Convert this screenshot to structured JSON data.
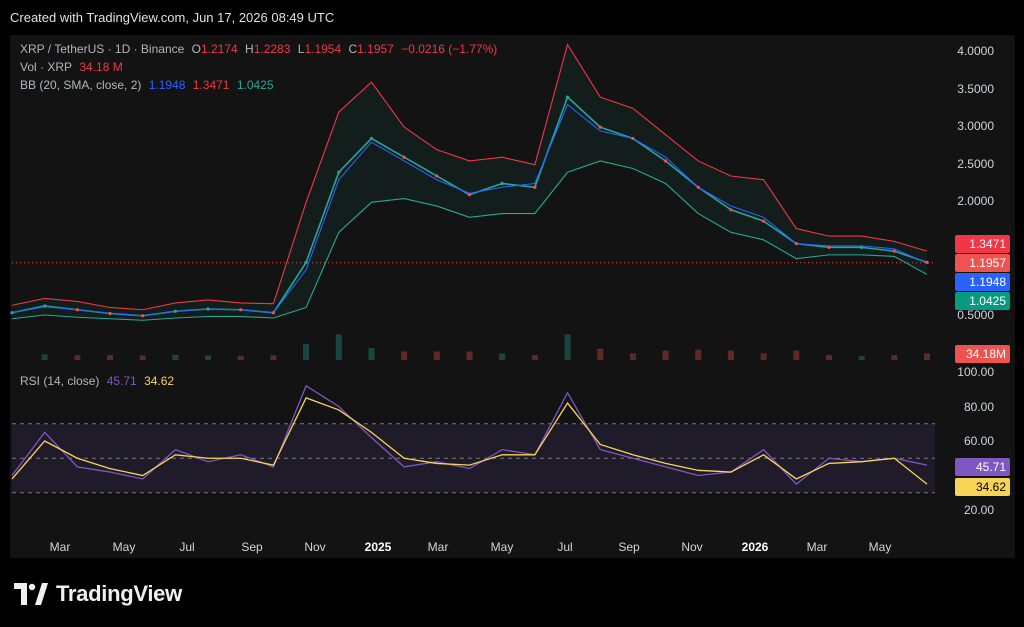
{
  "header": {
    "created": "Created with TradingView.com, Jun 17, 2026 08:49 UTC"
  },
  "legend": {
    "symbol": "XRP / TetherUS · 1D · Binance",
    "o_label": "O",
    "o": "1.2174",
    "h_label": "H",
    "h": "1.2283",
    "l_label": "L",
    "l": "1.1954",
    "c_label": "C",
    "c": "1.1957",
    "change": "−0.0216 (−1.77%)",
    "vol_label": "Vol · XRP",
    "vol": "34.18 M",
    "bb_label": "BB (20, SMA, close, 2)",
    "bb_basis": "1.1948",
    "bb_upper": "1.3471",
    "bb_lower": "1.0425",
    "rsi_label": "RSI (14, close)",
    "rsi": "45.71",
    "rsi_ma": "34.62"
  },
  "price_axis": [
    "4.0000",
    "3.5000",
    "3.0000",
    "2.5000",
    "2.0000",
    "0.5000"
  ],
  "price_pills": {
    "upper": "1.3471",
    "close": "1.1957",
    "basis": "1.1948",
    "lower": "1.0425",
    "volume": "34.18M"
  },
  "rsi_axis": [
    "100.00",
    "80.00",
    "60.00",
    "20.00"
  ],
  "rsi_pills": {
    "rsi": "45.71",
    "ma": "34.62"
  },
  "time_axis": [
    "Mar",
    "May",
    "Jul",
    "Sep",
    "Nov",
    "2025",
    "Mar",
    "May",
    "Jul",
    "Sep",
    "Nov",
    "2026",
    "Mar",
    "May"
  ],
  "brand": {
    "name": "TradingView"
  },
  "colors": {
    "bull": "#26a69a",
    "bear": "#ef5350",
    "upper": "#f23645",
    "basis": "#2962ff",
    "lower": "#22ab94",
    "rsi": "#7e57c2",
    "rsi_ma": "#f7d358"
  },
  "chart_data": [
    {
      "type": "line",
      "title": "XRP / TetherUS · 1D · Binance",
      "ylim": [
        0.3,
        4.3
      ],
      "x": [
        "2024-02",
        "2024-03",
        "2024-04",
        "2024-05",
        "2024-06",
        "2024-07",
        "2024-08",
        "2024-09",
        "2024-10",
        "2024-11",
        "2024-12",
        "2025-01",
        "2025-02",
        "2025-03",
        "2025-04",
        "2025-05",
        "2025-06",
        "2025-07",
        "2025-08",
        "2025-09",
        "2025-10",
        "2025-11",
        "2025-12",
        "2026-01",
        "2026-02",
        "2026-03",
        "2026-04",
        "2026-05",
        "2026-06"
      ],
      "series": [
        {
          "name": "close",
          "values": [
            0.53,
            0.62,
            0.57,
            0.52,
            0.49,
            0.55,
            0.58,
            0.57,
            0.53,
            1.2,
            2.4,
            2.85,
            2.6,
            2.35,
            2.1,
            2.25,
            2.2,
            3.4,
            3.0,
            2.85,
            2.55,
            2.2,
            1.9,
            1.75,
            1.45,
            1.4,
            1.4,
            1.35,
            1.2
          ]
        },
        {
          "name": "BB upper",
          "values": [
            0.63,
            0.72,
            0.68,
            0.6,
            0.57,
            0.66,
            0.7,
            0.66,
            0.65,
            2.0,
            3.2,
            3.6,
            3.0,
            2.7,
            2.55,
            2.6,
            2.5,
            4.1,
            3.4,
            3.25,
            2.9,
            2.55,
            2.35,
            2.3,
            1.65,
            1.55,
            1.55,
            1.48,
            1.35
          ]
        },
        {
          "name": "BB basis",
          "values": [
            0.53,
            0.61,
            0.57,
            0.52,
            0.49,
            0.55,
            0.58,
            0.57,
            0.53,
            1.1,
            2.3,
            2.8,
            2.55,
            2.3,
            2.12,
            2.2,
            2.25,
            3.3,
            2.95,
            2.85,
            2.6,
            2.2,
            1.95,
            1.8,
            1.45,
            1.42,
            1.42,
            1.38,
            1.19
          ]
        },
        {
          "name": "BB lower",
          "values": [
            0.45,
            0.5,
            0.47,
            0.45,
            0.43,
            0.46,
            0.48,
            0.48,
            0.46,
            0.6,
            1.6,
            2.0,
            2.05,
            1.95,
            1.8,
            1.85,
            1.85,
            2.4,
            2.55,
            2.45,
            2.25,
            1.85,
            1.6,
            1.5,
            1.25,
            1.3,
            1.3,
            1.28,
            1.04
          ]
        }
      ]
    },
    {
      "type": "line",
      "title": "RSI (14, close)",
      "ylim": [
        10,
        100
      ],
      "bands": [
        30,
        50,
        70
      ],
      "x": [
        "2024-02",
        "2024-03",
        "2024-04",
        "2024-05",
        "2024-06",
        "2024-07",
        "2024-08",
        "2024-09",
        "2024-10",
        "2024-11",
        "2024-12",
        "2025-01",
        "2025-02",
        "2025-03",
        "2025-04",
        "2025-05",
        "2025-06",
        "2025-07",
        "2025-08",
        "2025-09",
        "2025-10",
        "2025-11",
        "2025-12",
        "2026-01",
        "2026-02",
        "2026-03",
        "2026-04",
        "2026-05",
        "2026-06"
      ],
      "series": [
        {
          "name": "RSI",
          "values": [
            40,
            65,
            45,
            42,
            38,
            55,
            48,
            52,
            45,
            92,
            80,
            62,
            45,
            48,
            44,
            55,
            52,
            88,
            55,
            50,
            45,
            40,
            42,
            55,
            35,
            50,
            48,
            50,
            46
          ]
        },
        {
          "name": "RSI-based MA",
          "values": [
            38,
            60,
            50,
            44,
            40,
            52,
            50,
            50,
            46,
            85,
            78,
            65,
            50,
            47,
            46,
            52,
            52,
            82,
            58,
            52,
            47,
            43,
            42,
            52,
            38,
            47,
            48,
            50,
            35
          ]
        }
      ]
    }
  ]
}
